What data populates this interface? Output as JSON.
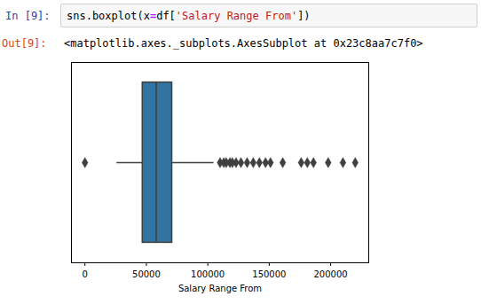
{
  "notebook": {
    "in_prompt": "In [9]:",
    "code": "sns.boxplot(x=df['Salary Range From'])",
    "out_prompt": "Out[9]:",
    "output": "<matplotlib.axes._subplots.AxesSubplot at 0x23c8aa7c7f0>"
  },
  "chart_data": {
    "type": "box",
    "x_label": "Salary Range From",
    "color": "#3274a1",
    "min": 26000,
    "q1": 47000,
    "median": 58000,
    "q3": 71000,
    "max": 105000,
    "outliers": [
      0,
      110000,
      113000,
      115000,
      118000,
      120000,
      123000,
      127000,
      132000,
      137000,
      142000,
      147000,
      151000,
      161000,
      176000,
      181000,
      186000,
      198000,
      210000,
      220000
    ],
    "xlim": [
      -11000,
      231000
    ],
    "xticks": [
      0,
      50000,
      100000,
      150000,
      200000
    ],
    "tick_labels": "x",
    "grid": false
  }
}
